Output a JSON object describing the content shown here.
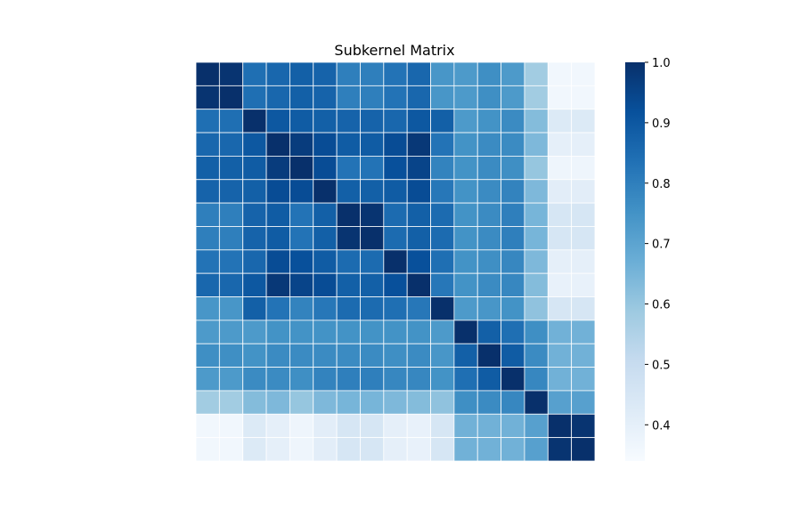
{
  "chart_data": {
    "type": "heatmap",
    "title": "Subkernel Matrix",
    "xlabel": "",
    "ylabel": "",
    "rows": 17,
    "cols": 17,
    "colormap": "Blues",
    "colormap_stops": [
      "#f7fbff",
      "#deebf7",
      "#c6dbef",
      "#9ecae1",
      "#6baed6",
      "#4292c6",
      "#2171b5",
      "#08519c",
      "#08306b"
    ],
    "vmin": 0.34,
    "vmax": 1.0,
    "colorbar_ticks": [
      0.4,
      0.5,
      0.6,
      0.7,
      0.8,
      0.9,
      1.0
    ],
    "colorbar_tick_labels": [
      "0.4",
      "0.5",
      "0.6",
      "0.7",
      "0.8",
      "0.9",
      "1.0"
    ],
    "values": [
      [
        1.0,
        0.99,
        0.84,
        0.86,
        0.88,
        0.87,
        0.8,
        0.8,
        0.83,
        0.86,
        0.74,
        0.73,
        0.76,
        0.73,
        0.58,
        0.36,
        0.36
      ],
      [
        0.99,
        1.0,
        0.84,
        0.86,
        0.88,
        0.87,
        0.8,
        0.8,
        0.83,
        0.86,
        0.74,
        0.73,
        0.76,
        0.73,
        0.58,
        0.36,
        0.36
      ],
      [
        0.84,
        0.84,
        1.0,
        0.9,
        0.89,
        0.88,
        0.87,
        0.87,
        0.86,
        0.9,
        0.88,
        0.73,
        0.75,
        0.77,
        0.63,
        0.43,
        0.43
      ],
      [
        0.86,
        0.86,
        0.9,
        1.0,
        0.97,
        0.93,
        0.89,
        0.89,
        0.93,
        0.98,
        0.83,
        0.75,
        0.77,
        0.77,
        0.64,
        0.4,
        0.4
      ],
      [
        0.88,
        0.88,
        0.89,
        0.97,
        1.0,
        0.93,
        0.83,
        0.83,
        0.92,
        0.95,
        0.79,
        0.75,
        0.77,
        0.76,
        0.6,
        0.37,
        0.37
      ],
      [
        0.87,
        0.87,
        0.88,
        0.93,
        0.93,
        1.0,
        0.88,
        0.88,
        0.89,
        0.93,
        0.82,
        0.75,
        0.77,
        0.79,
        0.64,
        0.41,
        0.41
      ],
      [
        0.8,
        0.8,
        0.87,
        0.89,
        0.83,
        0.88,
        1.0,
        0.99,
        0.85,
        0.88,
        0.85,
        0.75,
        0.77,
        0.8,
        0.65,
        0.45,
        0.45
      ],
      [
        0.8,
        0.8,
        0.87,
        0.89,
        0.83,
        0.88,
        0.99,
        1.0,
        0.85,
        0.88,
        0.85,
        0.75,
        0.77,
        0.8,
        0.65,
        0.45,
        0.45
      ],
      [
        0.83,
        0.83,
        0.86,
        0.93,
        0.92,
        0.89,
        0.85,
        0.85,
        1.0,
        0.92,
        0.84,
        0.75,
        0.76,
        0.78,
        0.64,
        0.4,
        0.4
      ],
      [
        0.86,
        0.86,
        0.9,
        0.98,
        0.95,
        0.93,
        0.88,
        0.88,
        0.92,
        1.0,
        0.82,
        0.75,
        0.77,
        0.78,
        0.63,
        0.39,
        0.39
      ],
      [
        0.74,
        0.74,
        0.88,
        0.83,
        0.79,
        0.82,
        0.85,
        0.85,
        0.84,
        0.82,
        1.0,
        0.73,
        0.74,
        0.75,
        0.61,
        0.45,
        0.45
      ],
      [
        0.73,
        0.73,
        0.73,
        0.75,
        0.75,
        0.75,
        0.75,
        0.75,
        0.75,
        0.75,
        0.73,
        1.0,
        0.88,
        0.84,
        0.76,
        0.66,
        0.66
      ],
      [
        0.76,
        0.76,
        0.75,
        0.77,
        0.77,
        0.77,
        0.77,
        0.77,
        0.76,
        0.77,
        0.74,
        0.88,
        1.0,
        0.89,
        0.77,
        0.66,
        0.66
      ],
      [
        0.73,
        0.73,
        0.77,
        0.77,
        0.76,
        0.79,
        0.8,
        0.8,
        0.78,
        0.78,
        0.75,
        0.84,
        0.89,
        1.0,
        0.78,
        0.66,
        0.66
      ],
      [
        0.58,
        0.58,
        0.63,
        0.64,
        0.6,
        0.64,
        0.65,
        0.65,
        0.64,
        0.63,
        0.61,
        0.76,
        0.77,
        0.78,
        1.0,
        0.71,
        0.71
      ],
      [
        0.36,
        0.36,
        0.43,
        0.4,
        0.37,
        0.41,
        0.45,
        0.45,
        0.4,
        0.39,
        0.45,
        0.66,
        0.66,
        0.66,
        0.71,
        1.0,
        0.99
      ],
      [
        0.36,
        0.36,
        0.43,
        0.4,
        0.37,
        0.41,
        0.45,
        0.45,
        0.4,
        0.39,
        0.45,
        0.66,
        0.66,
        0.66,
        0.71,
        0.99,
        1.0
      ]
    ]
  }
}
